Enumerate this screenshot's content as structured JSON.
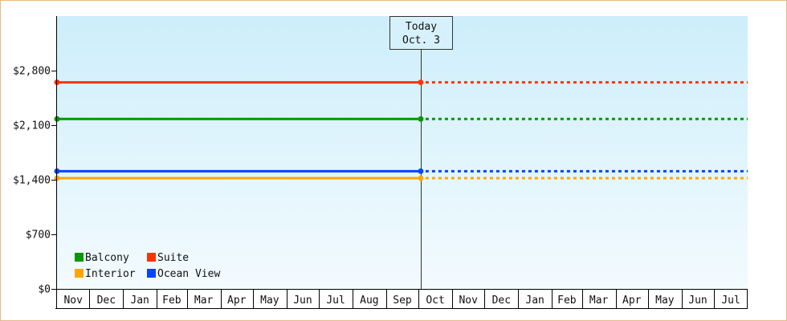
{
  "chart_data": {
    "type": "line",
    "xlabel": "",
    "ylabel": "",
    "ylim": [
      0,
      3500
    ],
    "grid": false,
    "legend_position": "bottom-left",
    "y_ticks": [
      {
        "value": 0,
        "label": "$0"
      },
      {
        "value": 700,
        "label": "$700"
      },
      {
        "value": 1400,
        "label": "$1,400"
      },
      {
        "value": 2100,
        "label": "$2,100"
      },
      {
        "value": 2800,
        "label": "$2,800"
      }
    ],
    "x_ticks": [
      "Nov",
      "Dec",
      "Jan",
      "Feb",
      "Mar",
      "Apr",
      "May",
      "Jun",
      "Jul",
      "Aug",
      "Sep",
      "Oct",
      "Nov",
      "Dec",
      "Jan",
      "Feb",
      "Mar",
      "Apr",
      "May",
      "Jun",
      "Jul"
    ],
    "x_range": [
      "Nov 1",
      "Jul 31"
    ],
    "marker": {
      "line1": "Today",
      "line2": "Oct. 3",
      "date": "Oct 3"
    },
    "series": [
      {
        "name": "Suite",
        "color": "#ff3300",
        "points": [
          {
            "x": "Nov 1",
            "y": 2650
          },
          {
            "x": "Oct 3",
            "y": 2650
          }
        ],
        "projection_to": "Jul 31"
      },
      {
        "name": "Balcony",
        "color": "#009900",
        "points": [
          {
            "x": "Nov 1",
            "y": 2180
          },
          {
            "x": "Oct 3",
            "y": 2180
          }
        ],
        "projection_to": "Jul 31"
      },
      {
        "name": "Ocean View",
        "color": "#0044ff",
        "points": [
          {
            "x": "Nov 1",
            "y": 1510
          },
          {
            "x": "Oct 3",
            "y": 1510
          }
        ],
        "projection_to": "Jul 31"
      },
      {
        "name": "Interior",
        "color": "#ffa500",
        "points": [
          {
            "x": "Nov 1",
            "y": 1420
          },
          {
            "x": "Oct 3",
            "y": 1420
          }
        ],
        "projection_to": "Jul 31"
      }
    ],
    "legend_rows": [
      [
        "Balcony",
        "Suite"
      ],
      [
        "Interior",
        "Ocean View"
      ]
    ],
    "colors": {
      "background_top": "#cdeefb",
      "background_bottom": "#f3fbfe",
      "frame": "#e8b884"
    }
  }
}
